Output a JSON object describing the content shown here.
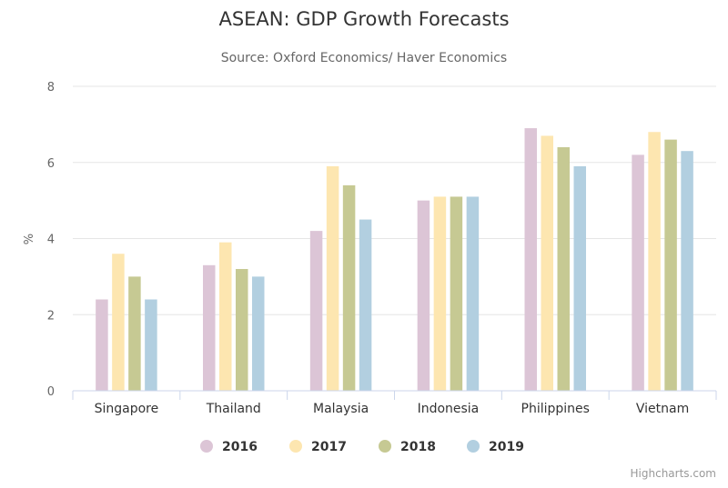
{
  "chart_data": {
    "type": "bar",
    "title": "ASEAN: GDP Growth Forecasts",
    "subtitle": "Source: Oxford Economics/ Haver Economics",
    "ylabel": "%",
    "ylim": [
      0,
      8
    ],
    "yticks": [
      0,
      2,
      4,
      6,
      8
    ],
    "grid": true,
    "legend_position": "bottom-center",
    "categories": [
      "Singapore",
      "Thailand",
      "Malaysia",
      "Indonesia",
      "Philippines",
      "Vietnam"
    ],
    "series": [
      {
        "name": "2016",
        "color": "#dcc5d6",
        "values": [
          2.4,
          3.3,
          4.2,
          5.0,
          6.9,
          6.2
        ]
      },
      {
        "name": "2017",
        "color": "#fde6b0",
        "values": [
          3.6,
          3.9,
          5.9,
          5.1,
          6.7,
          6.8
        ]
      },
      {
        "name": "2018",
        "color": "#c6c993",
        "values": [
          3.0,
          3.2,
          5.4,
          5.1,
          6.4,
          6.6
        ]
      },
      {
        "name": "2019",
        "color": "#b2cfe0",
        "values": [
          2.4,
          3.0,
          4.5,
          5.1,
          5.9,
          6.3
        ]
      }
    ]
  },
  "credits": "Highcharts.com"
}
